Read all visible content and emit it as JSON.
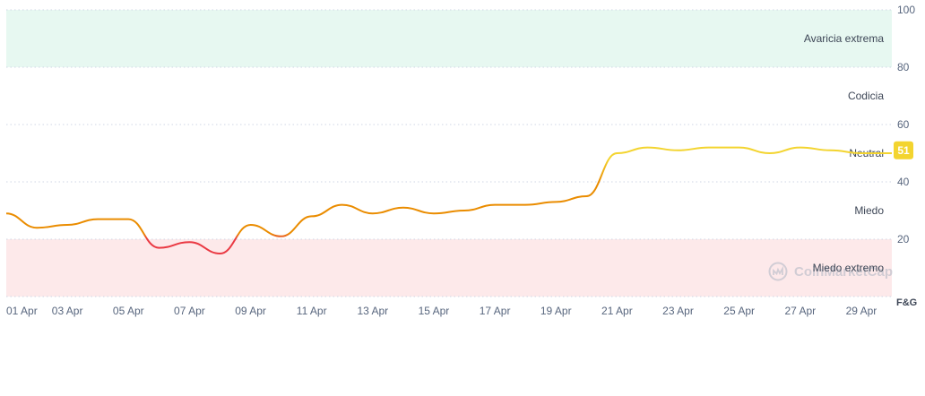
{
  "colors": {
    "greed_band": "#e7f8f1",
    "fear_band": "#fde9ea",
    "grid": "#cfd6e4",
    "line_high": "#f3d42f",
    "line_mid": "#ea8c00",
    "line_low": "#ea3943",
    "badge": "#f3d42f",
    "text": "#3d4656",
    "tick": "#58667e",
    "watermark": "#b4bac6"
  },
  "watermark": {
    "text": "CoinMarketCap",
    "icon": "coinmarketcap-logo-icon"
  },
  "chart_data": {
    "type": "line",
    "x_axis_label": "F&G",
    "ylim": [
      0,
      100
    ],
    "y_ticks": [
      20,
      40,
      60,
      80,
      100
    ],
    "x_tick_labels": [
      "01 Apr",
      "03 Apr",
      "05 Apr",
      "07 Apr",
      "09 Apr",
      "11 Apr",
      "13 Apr",
      "15 Apr",
      "17 Apr",
      "19 Apr",
      "21 Apr",
      "23 Apr",
      "25 Apr",
      "27 Apr",
      "29 Apr"
    ],
    "zones": [
      {
        "label": "Avaricia extrema",
        "from": 80,
        "to": 100,
        "shaded": true
      },
      {
        "label": "Codicia",
        "from": 60,
        "to": 80,
        "shaded": false
      },
      {
        "label": "Neutral",
        "from": 40,
        "to": 60,
        "shaded": false
      },
      {
        "label": "Miedo",
        "from": 20,
        "to": 40,
        "shaded": false
      },
      {
        "label": "Miedo extremo",
        "from": 0,
        "to": 20,
        "shaded": true
      }
    ],
    "grid": true,
    "current_value": 51,
    "series": [
      {
        "x": [
          "01 Apr",
          "02 Apr",
          "03 Apr",
          "04 Apr",
          "05 Apr",
          "06 Apr",
          "07 Apr",
          "08 Apr",
          "09 Apr",
          "10 Apr",
          "11 Apr",
          "12 Apr",
          "13 Apr",
          "14 Apr",
          "15 Apr",
          "16 Apr",
          "17 Apr",
          "18 Apr",
          "19 Apr",
          "20 Apr",
          "21 Apr",
          "22 Apr",
          "23 Apr",
          "24 Apr",
          "25 Apr",
          "26 Apr",
          "27 Apr",
          "28 Apr",
          "29 Apr",
          "30 Apr"
        ],
        "values": [
          29,
          24,
          25,
          27,
          27,
          17,
          19,
          15,
          25,
          21,
          28,
          32,
          29,
          31,
          29,
          30,
          32,
          32,
          33,
          35,
          50,
          52,
          51,
          52,
          52,
          50,
          52,
          51,
          50,
          50
        ]
      }
    ]
  }
}
